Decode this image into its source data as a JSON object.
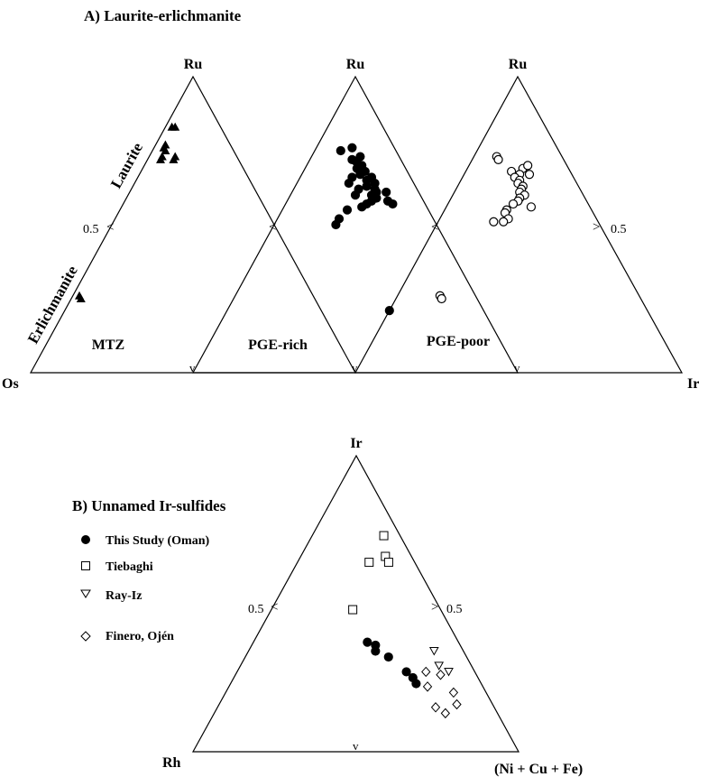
{
  "panel_a": {
    "title": "A) Laurite-erlichmanite",
    "apex_top": "Ru",
    "apex_left": "Os",
    "apex_right": "Ir",
    "side_upper": "Laurite",
    "side_lower": "Erlichmanite",
    "tick_half": "0.5",
    "tick_mark": "<",
    "tick_mark_right": ">",
    "tick_mark_base": "v",
    "subplot_labels": [
      "MTZ",
      "PGE-rich",
      "PGE-poor"
    ]
  },
  "panel_b": {
    "title": "B) Unnamed Ir-sulfides",
    "apex_top": "Ir",
    "apex_left": "Rh",
    "apex_right": "(Ni + Cu + Fe)",
    "tick_half": "0.5",
    "tick_mark": "<",
    "tick_mark_right": ">",
    "tick_mark_base": "v",
    "legend": [
      {
        "label": "This Study (Oman)",
        "marker": "filled-circle"
      },
      {
        "label": "Tiebaghi",
        "marker": "open-square"
      },
      {
        "label": "Ray-Iz",
        "marker": "open-triangle-down"
      },
      {
        "label": "Finero, Ojén",
        "marker": "open-diamond"
      }
    ]
  },
  "chart_data": [
    {
      "type": "scatter",
      "title": "A) Laurite-erlichmanite",
      "subplot": "MTZ",
      "components": [
        "Ru",
        "Os",
        "Ir"
      ],
      "marker": "filled-triangle",
      "points": [
        [
          0.83,
          0.14,
          0.03
        ],
        [
          0.83,
          0.15,
          0.02
        ],
        [
          0.77,
          0.2,
          0.03
        ],
        [
          0.76,
          0.21,
          0.03
        ],
        [
          0.75,
          0.21,
          0.04
        ],
        [
          0.73,
          0.23,
          0.04
        ],
        [
          0.72,
          0.24,
          0.04
        ],
        [
          0.72,
          0.2,
          0.08
        ],
        [
          0.73,
          0.19,
          0.08
        ],
        [
          0.26,
          0.72,
          0.02
        ],
        [
          0.25,
          0.72,
          0.03
        ]
      ]
    },
    {
      "type": "scatter",
      "title": "A) Laurite-erlichmanite",
      "subplot": "PGE-rich",
      "components": [
        "Ru",
        "Os",
        "Ir"
      ],
      "marker": "filled-circle",
      "points": [
        [
          0.75,
          0.17,
          0.08
        ],
        [
          0.76,
          0.13,
          0.11
        ],
        [
          0.72,
          0.15,
          0.13
        ],
        [
          0.73,
          0.12,
          0.15
        ],
        [
          0.71,
          0.14,
          0.15
        ],
        [
          0.7,
          0.13,
          0.17
        ],
        [
          0.69,
          0.15,
          0.16
        ],
        [
          0.68,
          0.13,
          0.19
        ],
        [
          0.67,
          0.15,
          0.18
        ],
        [
          0.66,
          0.12,
          0.22
        ],
        [
          0.65,
          0.14,
          0.21
        ],
        [
          0.64,
          0.12,
          0.24
        ],
        [
          0.63,
          0.15,
          0.22
        ],
        [
          0.62,
          0.13,
          0.25
        ],
        [
          0.61,
          0.13,
          0.26
        ],
        [
          0.6,
          0.15,
          0.25
        ],
        [
          0.59,
          0.14,
          0.27
        ],
        [
          0.58,
          0.16,
          0.26
        ],
        [
          0.57,
          0.18,
          0.25
        ],
        [
          0.62,
          0.18,
          0.2
        ],
        [
          0.66,
          0.18,
          0.16
        ],
        [
          0.64,
          0.2,
          0.16
        ],
        [
          0.6,
          0.2,
          0.2
        ],
        [
          0.56,
          0.2,
          0.24
        ],
        [
          0.55,
          0.25,
          0.2
        ],
        [
          0.52,
          0.29,
          0.19
        ],
        [
          0.5,
          0.31,
          0.19
        ],
        [
          0.58,
          0.11,
          0.31
        ],
        [
          0.61,
          0.1,
          0.29
        ],
        [
          0.57,
          0.1,
          0.33
        ],
        [
          0.21,
          0.29,
          0.5
        ]
      ]
    },
    {
      "type": "scatter",
      "title": "A) Laurite-erlichmanite",
      "subplot": "PGE-poor",
      "components": [
        "Ru",
        "Os",
        "Ir"
      ],
      "marker": "open-circle",
      "points": [
        [
          0.73,
          0.2,
          0.07
        ],
        [
          0.72,
          0.2,
          0.08
        ],
        [
          0.69,
          0.14,
          0.17
        ],
        [
          0.7,
          0.12,
          0.18
        ],
        [
          0.68,
          0.18,
          0.14
        ],
        [
          0.67,
          0.16,
          0.17
        ],
        [
          0.66,
          0.18,
          0.16
        ],
        [
          0.65,
          0.17,
          0.18
        ],
        [
          0.64,
          0.18,
          0.18
        ],
        [
          0.63,
          0.17,
          0.2
        ],
        [
          0.62,
          0.18,
          0.2
        ],
        [
          0.61,
          0.19,
          0.2
        ],
        [
          0.6,
          0.18,
          0.22
        ],
        [
          0.59,
          0.2,
          0.21
        ],
        [
          0.58,
          0.21,
          0.21
        ],
        [
          0.57,
          0.23,
          0.2
        ],
        [
          0.56,
          0.18,
          0.26
        ],
        [
          0.55,
          0.26,
          0.19
        ],
        [
          0.54,
          0.27,
          0.19
        ],
        [
          0.52,
          0.27,
          0.21
        ],
        [
          0.51,
          0.32,
          0.17
        ],
        [
          0.51,
          0.29,
          0.2
        ],
        [
          0.67,
          0.13,
          0.2
        ],
        [
          0.26,
          0.61,
          0.13
        ],
        [
          0.25,
          0.61,
          0.14
        ]
      ]
    },
    {
      "type": "scatter",
      "title": "B) Unnamed Ir-sulfides",
      "components": [
        "Ir",
        "Rh",
        "(Ni + Cu + Fe)"
      ],
      "series": [
        {
          "name": "This Study (Oman)",
          "marker": "filled-circle",
          "points": [
            [
              0.37,
              0.28,
              0.35
            ],
            [
              0.36,
              0.26,
              0.38
            ],
            [
              0.34,
              0.27,
              0.39
            ],
            [
              0.32,
              0.24,
              0.44
            ],
            [
              0.27,
              0.21,
              0.52
            ],
            [
              0.25,
              0.2,
              0.55
            ],
            [
              0.23,
              0.2,
              0.57
            ]
          ]
        },
        {
          "name": "Tiebaghi",
          "marker": "open-square",
          "points": [
            [
              0.73,
              0.05,
              0.22
            ],
            [
              0.66,
              0.08,
              0.26
            ],
            [
              0.64,
              0.14,
              0.22
            ],
            [
              0.64,
              0.08,
              0.28
            ],
            [
              0.48,
              0.27,
              0.25
            ]
          ]
        },
        {
          "name": "Ray-Iz",
          "marker": "open-triangle-down",
          "points": [
            [
              0.34,
              0.09,
              0.57
            ],
            [
              0.29,
              0.1,
              0.61
            ],
            [
              0.27,
              0.08,
              0.65
            ]
          ]
        },
        {
          "name": "Finero, Ojén",
          "marker": "open-diamond",
          "points": [
            [
              0.27,
              0.15,
              0.58
            ],
            [
              0.26,
              0.11,
              0.63
            ],
            [
              0.22,
              0.17,
              0.61
            ],
            [
              0.2,
              0.1,
              0.7
            ],
            [
              0.16,
              0.11,
              0.73
            ],
            [
              0.15,
              0.18,
              0.67
            ],
            [
              0.13,
              0.16,
              0.71
            ]
          ]
        }
      ]
    }
  ]
}
